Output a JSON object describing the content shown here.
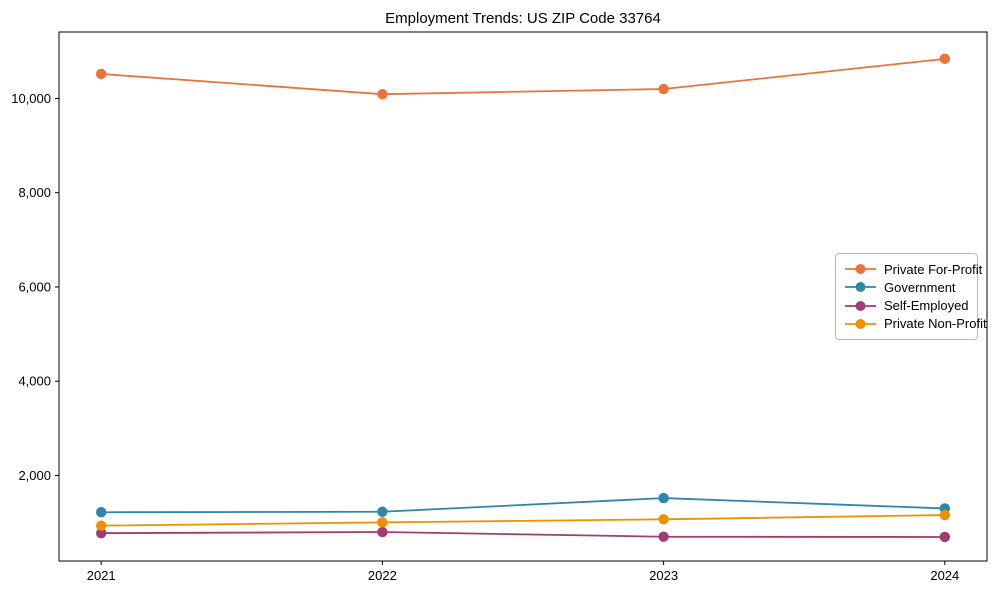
{
  "chart_data": {
    "type": "line",
    "title": "Employment Trends: US ZIP Code 33764",
    "xlabel": "",
    "ylabel": "",
    "x": [
      2021,
      2022,
      2023,
      2024
    ],
    "series": [
      {
        "name": "Private For-Profit",
        "color": "#E8743B",
        "values": [
          10520,
          10090,
          10200,
          10840
        ]
      },
      {
        "name": "Government",
        "color": "#2E86AB",
        "values": [
          1220,
          1230,
          1520,
          1300
        ]
      },
      {
        "name": "Self-Employed",
        "color": "#A23B72",
        "values": [
          775,
          800,
          700,
          695
        ]
      },
      {
        "name": "Private Non-Profit",
        "color": "#F18F01",
        "values": [
          935,
          1005,
          1070,
          1160
        ]
      }
    ],
    "xticks": [
      "2021",
      "2022",
      "2023",
      "2024"
    ],
    "yticks": [
      2000,
      4000,
      6000,
      8000,
      10000
    ],
    "ytick_labels": [
      "2,000",
      "4,000",
      "6,000",
      "8,000",
      "10,000"
    ],
    "xlim": [
      2020.85,
      2024.15
    ],
    "ylim": [
      185,
      11410
    ],
    "grid": false,
    "marker": "circle",
    "legend_position": "center right",
    "axis_color": "#000000",
    "background_color": "#ffffff"
  }
}
